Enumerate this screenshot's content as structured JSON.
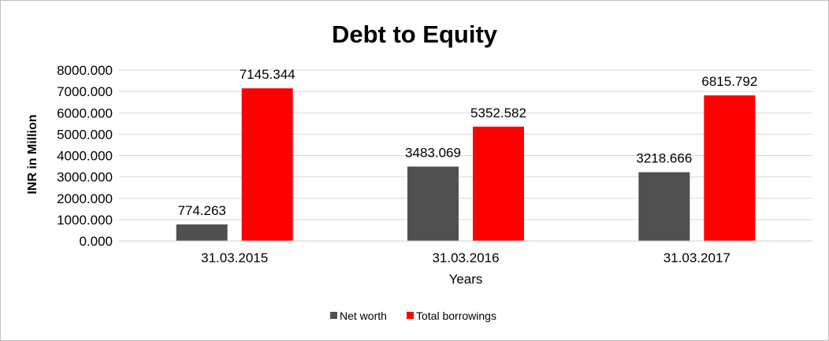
{
  "chart_data": {
    "type": "bar",
    "title": "Debt to Equity",
    "xlabel": "Years",
    "ylabel": "INR in Million",
    "categories": [
      "31.03.2015",
      "31.03.2016",
      "31.03.2017"
    ],
    "series": [
      {
        "name": "Net worth",
        "color": "#505050",
        "values": [
          774.263,
          3483.069,
          3218.666
        ]
      },
      {
        "name": "Total borrowings",
        "color": "#ff0000",
        "values": [
          7145.344,
          5352.582,
          6815.792
        ]
      }
    ],
    "ylim": [
      0,
      8000
    ],
    "yticks": [
      "0.000",
      "1000.000",
      "2000.000",
      "3000.000",
      "4000.000",
      "5000.000",
      "6000.000",
      "7000.000",
      "8000.000"
    ],
    "grid": true,
    "legend": "bottom",
    "data_labels": [
      [
        "774.263",
        "3483.069",
        "3218.666"
      ],
      [
        "7145.344",
        "5352.582",
        "6815.792"
      ]
    ]
  }
}
